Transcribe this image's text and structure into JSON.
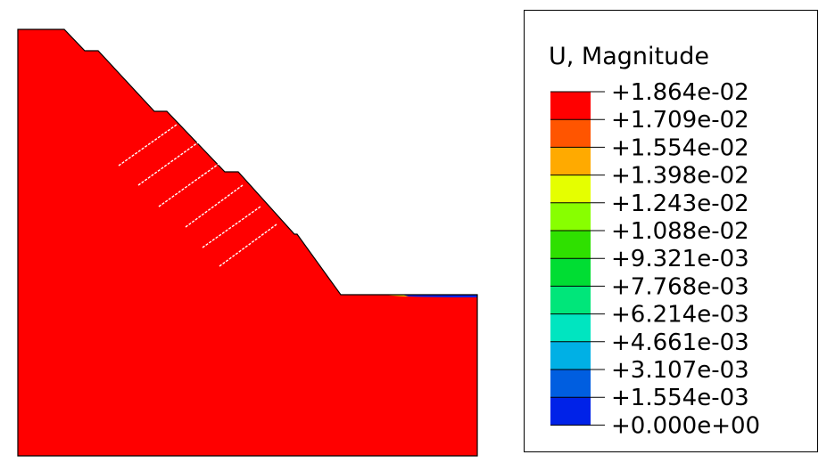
{
  "legend": {
    "title": "U, Magnitude",
    "labels": [
      "+1.864e-02",
      "+1.709e-02",
      "+1.554e-02",
      "+1.398e-02",
      "+1.243e-02",
      "+1.088e-02",
      "+9.321e-03",
      "+7.768e-03",
      "+6.214e-03",
      "+4.661e-03",
      "+3.107e-03",
      "+1.554e-03",
      "+0.000e+00"
    ],
    "colors": [
      "#ff0000",
      "#ff5500",
      "#ffaa00",
      "#e5ff00",
      "#88ff00",
      "#2fe000",
      "#00dd33",
      "#00e67a",
      "#00e5c0",
      "#00b0e5",
      "#005ee0",
      "#0022e8"
    ]
  },
  "contour": {
    "band_colors": [
      "#0022e8",
      "#005ee0",
      "#00a2df",
      "#00d5cf",
      "#00e58a",
      "#00dd3b",
      "#2fe000",
      "#88ff00",
      "#e5ff00",
      "#ffaa00",
      "#ff5500",
      "#ff0000"
    ],
    "outline_color": "#000000"
  }
}
